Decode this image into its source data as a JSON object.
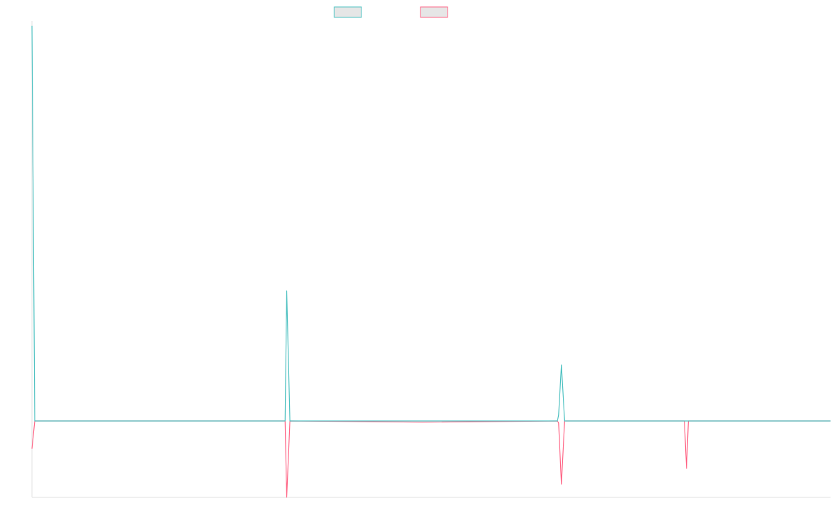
{
  "chart_data": {
    "type": "line",
    "title": "",
    "xlabel": "",
    "ylabel": "",
    "xlim": [
      0,
      100
    ],
    "ylim": [
      -0.193,
      1.0
    ],
    "grid": false,
    "legend": {
      "placement": "top",
      "entries": [
        {
          "label": "",
          "color": "#4bc0c0"
        },
        {
          "label": "",
          "color": "#ff6384"
        }
      ]
    },
    "series": [
      {
        "color": "#4bc0c0",
        "points": [
          [
            0,
            1.0
          ],
          [
            0.35,
            0
          ],
          [
            12.0,
            0
          ],
          [
            31.7,
            0
          ],
          [
            31.9,
            0.329
          ],
          [
            32.3,
            0
          ],
          [
            46.6,
            0
          ],
          [
            65.8,
            0
          ],
          [
            65.95,
            0.015
          ],
          [
            66.3,
            0.142
          ],
          [
            66.7,
            0
          ],
          [
            100,
            0
          ]
        ]
      },
      {
        "color": "#ff6384",
        "points": [
          [
            0,
            -0.07
          ],
          [
            0.35,
            0
          ],
          [
            12.0,
            0
          ],
          [
            31.7,
            0
          ],
          [
            31.9,
            -0.193
          ],
          [
            32.3,
            0
          ],
          [
            48.9,
            -0.003
          ],
          [
            65.8,
            0
          ],
          [
            65.95,
            -0.005
          ],
          [
            66.3,
            -0.16
          ],
          [
            66.7,
            0
          ],
          [
            81.7,
            0
          ],
          [
            81.97,
            -0.12
          ],
          [
            82.2,
            0
          ],
          [
            100,
            0
          ]
        ]
      }
    ]
  }
}
